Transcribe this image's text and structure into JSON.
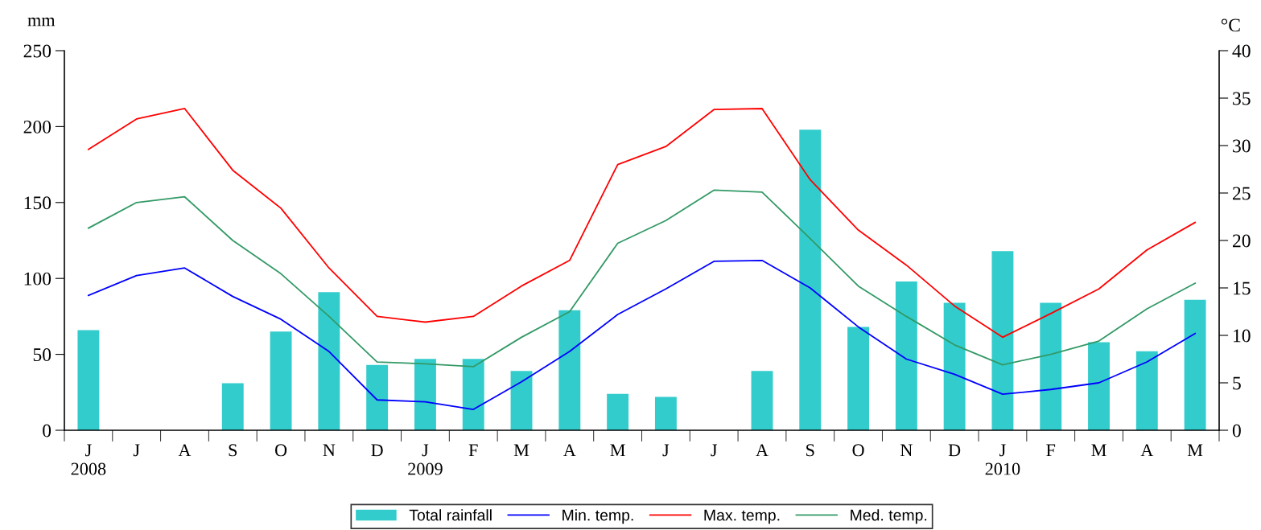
{
  "chart_data": {
    "type": "bar",
    "categories": [
      "J\n2008",
      "J",
      "A",
      "S",
      "O",
      "N",
      "D",
      "J\n2009",
      "F",
      "M",
      "A",
      "M",
      "J",
      "J",
      "A",
      "S",
      "O",
      "N",
      "D",
      "J\n2010",
      "F",
      "M",
      "A",
      "M"
    ],
    "ylabel": "mm",
    "y2label": "°C",
    "ylim": [
      0,
      250
    ],
    "yticks": [
      0,
      50,
      100,
      150,
      200,
      250
    ],
    "y2lim": [
      0,
      40
    ],
    "y2ticks": [
      0,
      5,
      10,
      15,
      20,
      25,
      30,
      35,
      40
    ],
    "grid": false,
    "legend": "bottom",
    "series": [
      {
        "name": "Total rainfall",
        "color": "#33cccc",
        "values": [
          66,
          0,
          0,
          31,
          65,
          91,
          43,
          47,
          47,
          39,
          79,
          24,
          22,
          0,
          39,
          198,
          68,
          98,
          84,
          118,
          84,
          58,
          52,
          86
        ]
      },
      {
        "name": "Min. temp.",
        "type": "line",
        "axis": "y2",
        "color": "#0000ff",
        "values": [
          14.2,
          16.3,
          17.1,
          14.1,
          11.7,
          8.3,
          3.2,
          3.0,
          2.2,
          5.1,
          8.3,
          12.2,
          14.9,
          17.8,
          17.9,
          15.0,
          10.9,
          7.5,
          5.9,
          3.8,
          4.3,
          5.0,
          7.2,
          10.2
        ]
      },
      {
        "name": "Max. temp.",
        "type": "line",
        "axis": "y2",
        "color": "#ff0000",
        "values": [
          29.6,
          32.8,
          33.9,
          27.4,
          23.4,
          17.1,
          12.0,
          11.4,
          12.0,
          15.2,
          17.9,
          28.0,
          29.9,
          33.8,
          33.9,
          26.4,
          21.1,
          17.4,
          13.1,
          9.8,
          12.3,
          14.9,
          19.0,
          21.9
        ]
      },
      {
        "name": "Med. temp.",
        "type": "line",
        "axis": "y2",
        "color": "#339966",
        "values": [
          21.3,
          24.0,
          24.6,
          20.0,
          16.5,
          12.0,
          7.2,
          7.0,
          6.7,
          9.8,
          12.5,
          19.7,
          22.1,
          25.3,
          25.1,
          20.2,
          15.2,
          12.0,
          9.0,
          6.9,
          8.0,
          9.4,
          12.8,
          15.5
        ]
      }
    ]
  }
}
